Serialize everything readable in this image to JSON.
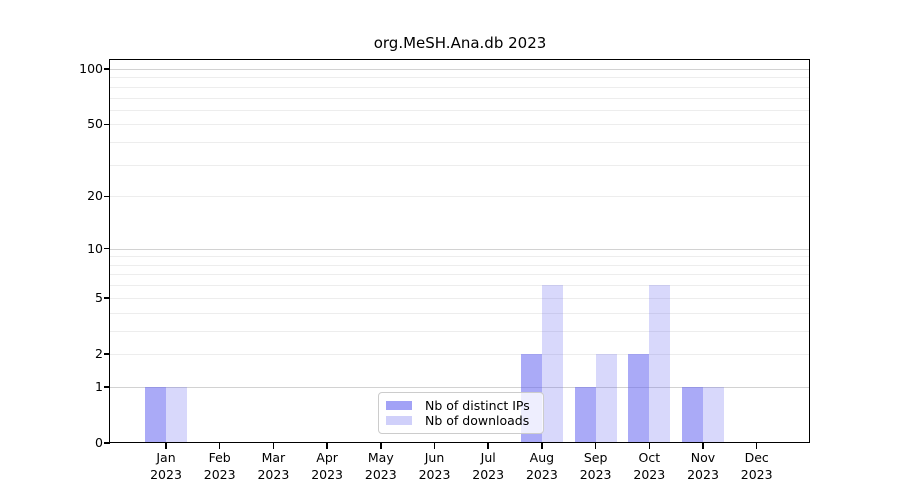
{
  "chart_data": {
    "type": "bar",
    "title": "org.MeSH.Ana.db 2023",
    "categories": [
      "Jan 2023",
      "Feb 2023",
      "Mar 2023",
      "Apr 2023",
      "May 2023",
      "Jun 2023",
      "Jul 2023",
      "Aug 2023",
      "Sep 2023",
      "Oct 2023",
      "Nov 2023",
      "Dec 2023"
    ],
    "series": [
      {
        "name": "Nb of distinct IPs",
        "values": [
          1,
          0,
          0,
          0,
          0,
          0,
          0,
          2,
          1,
          2,
          1,
          0
        ],
        "color": "#6464f0",
        "alpha": 0.55
      },
      {
        "name": "Nb of downloads",
        "values": [
          1,
          0,
          0,
          0,
          0,
          0,
          0,
          6,
          2,
          6,
          1,
          0
        ],
        "color": "#6464f0",
        "alpha": 0.25
      }
    ],
    "y_scale": "log10(1+x)",
    "y_tick_labels": [
      0,
      1,
      2,
      5,
      10,
      20,
      50,
      100
    ],
    "y_major_gridlines": [
      1,
      10,
      100
    ],
    "y_minor_gridlines": [
      2,
      3,
      4,
      5,
      6,
      7,
      8,
      9,
      20,
      30,
      40,
      50,
      60,
      70,
      80,
      90
    ],
    "ylim": [
      0,
      112
    ],
    "grid": "horizontal",
    "legend_position": "lower-center-inside",
    "colors": {
      "background": "#ffffff",
      "axis": "#000000",
      "major_grid": "#d2d2d2",
      "minor_grid": "#ededed",
      "legend_border": "#cccccc",
      "text": "#000000"
    }
  }
}
